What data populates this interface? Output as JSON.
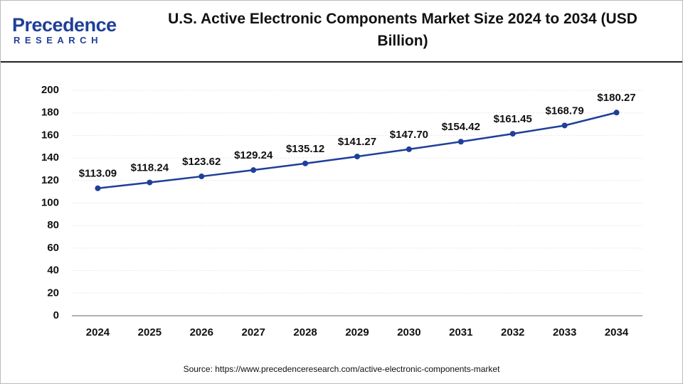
{
  "logo": {
    "name": "Precedence",
    "sub": "RESEARCH"
  },
  "source": "Source: https://www.precedenceresearch.com/active-electronic-components-market",
  "chart_data": {
    "type": "line",
    "title": "U.S. Active Electronic Components Market Size 2024 to 2034 (USD Billion)",
    "categories": [
      "2024",
      "2025",
      "2026",
      "2027",
      "2028",
      "2029",
      "2030",
      "2031",
      "2032",
      "2033",
      "2034"
    ],
    "values": [
      113.09,
      118.24,
      123.62,
      129.24,
      135.12,
      141.27,
      147.7,
      154.42,
      161.45,
      168.79,
      180.27
    ],
    "value_labels": [
      "$113.09",
      "$118.24",
      "$123.62",
      "$129.24",
      "$135.12",
      "$141.27",
      "$147.70",
      "$154.42",
      "$161.45",
      "$168.79",
      "$180.27"
    ],
    "color": "#1f3f99",
    "ylim": [
      0,
      200
    ],
    "yticks": [
      0,
      20,
      40,
      60,
      80,
      100,
      120,
      140,
      160,
      180,
      200
    ],
    "grid": true
  }
}
